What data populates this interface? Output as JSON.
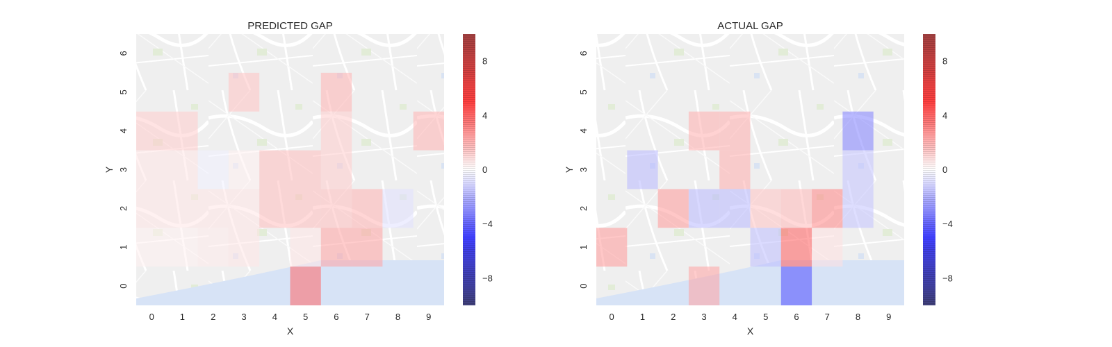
{
  "chart_data": [
    {
      "type": "heatmap",
      "title": "PREDICTED GAP",
      "xlabel": "X",
      "ylabel": "Y",
      "x": [
        0,
        1,
        2,
        3,
        4,
        5,
        6,
        7,
        8,
        9
      ],
      "y": [
        0,
        1,
        2,
        3,
        4,
        5,
        6
      ],
      "background": "street map",
      "colormap": "seismic",
      "clim": [
        -10,
        10
      ],
      "colorbar_ticks": [
        -8,
        -4,
        0,
        4,
        8
      ],
      "cells": [
        {
          "x": 3,
          "y": 5,
          "value": 1.2
        },
        {
          "x": 6,
          "y": 5,
          "value": 1.5
        },
        {
          "x": 0,
          "y": 4,
          "value": 1.0
        },
        {
          "x": 1,
          "y": 4,
          "value": 1.0
        },
        {
          "x": 6,
          "y": 4,
          "value": 1.0
        },
        {
          "x": 9,
          "y": 4,
          "value": 1.5
        },
        {
          "x": 0,
          "y": 3,
          "value": 0.5
        },
        {
          "x": 1,
          "y": 3,
          "value": 0.5
        },
        {
          "x": 2,
          "y": 3,
          "value": -0.3
        },
        {
          "x": 3,
          "y": 3,
          "value": 0.3
        },
        {
          "x": 4,
          "y": 3,
          "value": 1.3
        },
        {
          "x": 5,
          "y": 3,
          "value": 1.3
        },
        {
          "x": 6,
          "y": 3,
          "value": 1.0
        },
        {
          "x": 0,
          "y": 2,
          "value": 0.5
        },
        {
          "x": 1,
          "y": 2,
          "value": 0.5
        },
        {
          "x": 2,
          "y": 2,
          "value": 0.5
        },
        {
          "x": 3,
          "y": 2,
          "value": 0.5
        },
        {
          "x": 4,
          "y": 2,
          "value": 1.3
        },
        {
          "x": 5,
          "y": 2,
          "value": 1.3
        },
        {
          "x": 6,
          "y": 2,
          "value": 1.3
        },
        {
          "x": 7,
          "y": 2,
          "value": 1.5
        },
        {
          "x": 8,
          "y": 2,
          "value": -0.6
        },
        {
          "x": 0,
          "y": 1,
          "value": 0.3
        },
        {
          "x": 1,
          "y": 1,
          "value": 0.3
        },
        {
          "x": 2,
          "y": 1,
          "value": 0.4
        },
        {
          "x": 3,
          "y": 1,
          "value": 0.5
        },
        {
          "x": 5,
          "y": 1,
          "value": 0.5
        },
        {
          "x": 6,
          "y": 1,
          "value": 1.8
        },
        {
          "x": 7,
          "y": 1,
          "value": 1.8
        },
        {
          "x": 5,
          "y": 0,
          "value": 3.0
        }
      ]
    },
    {
      "type": "heatmap",
      "title": "ACTUAL GAP",
      "xlabel": "X",
      "ylabel": "Y",
      "x": [
        0,
        1,
        2,
        3,
        4,
        5,
        6,
        7,
        8,
        9
      ],
      "y": [
        0,
        1,
        2,
        3,
        4,
        5,
        6
      ],
      "background": "street map",
      "colormap": "seismic",
      "clim": [
        -10,
        10
      ],
      "colorbar_ticks": [
        -8,
        -4,
        0,
        4,
        8
      ],
      "cells": [
        {
          "x": 3,
          "y": 4,
          "value": 1.6
        },
        {
          "x": 4,
          "y": 4,
          "value": 1.6
        },
        {
          "x": 8,
          "y": 4,
          "value": -2.5
        },
        {
          "x": 1,
          "y": 3,
          "value": -1.4
        },
        {
          "x": 4,
          "y": 3,
          "value": 1.6
        },
        {
          "x": 8,
          "y": 3,
          "value": -1.2
        },
        {
          "x": 2,
          "y": 2,
          "value": 2.0
        },
        {
          "x": 3,
          "y": 2,
          "value": -1.4
        },
        {
          "x": 4,
          "y": 2,
          "value": -1.4
        },
        {
          "x": 5,
          "y": 2,
          "value": 1.2
        },
        {
          "x": 6,
          "y": 2,
          "value": 1.4
        },
        {
          "x": 7,
          "y": 2,
          "value": 2.4
        },
        {
          "x": 8,
          "y": 2,
          "value": -1.2
        },
        {
          "x": 0,
          "y": 1,
          "value": 2.0
        },
        {
          "x": 5,
          "y": 1,
          "value": -1.3
        },
        {
          "x": 6,
          "y": 1,
          "value": 3.2
        },
        {
          "x": 7,
          "y": 1,
          "value": 0.6
        },
        {
          "x": 3,
          "y": 0,
          "value": 1.8
        },
        {
          "x": 6,
          "y": 0,
          "value": -3.5
        }
      ]
    }
  ]
}
